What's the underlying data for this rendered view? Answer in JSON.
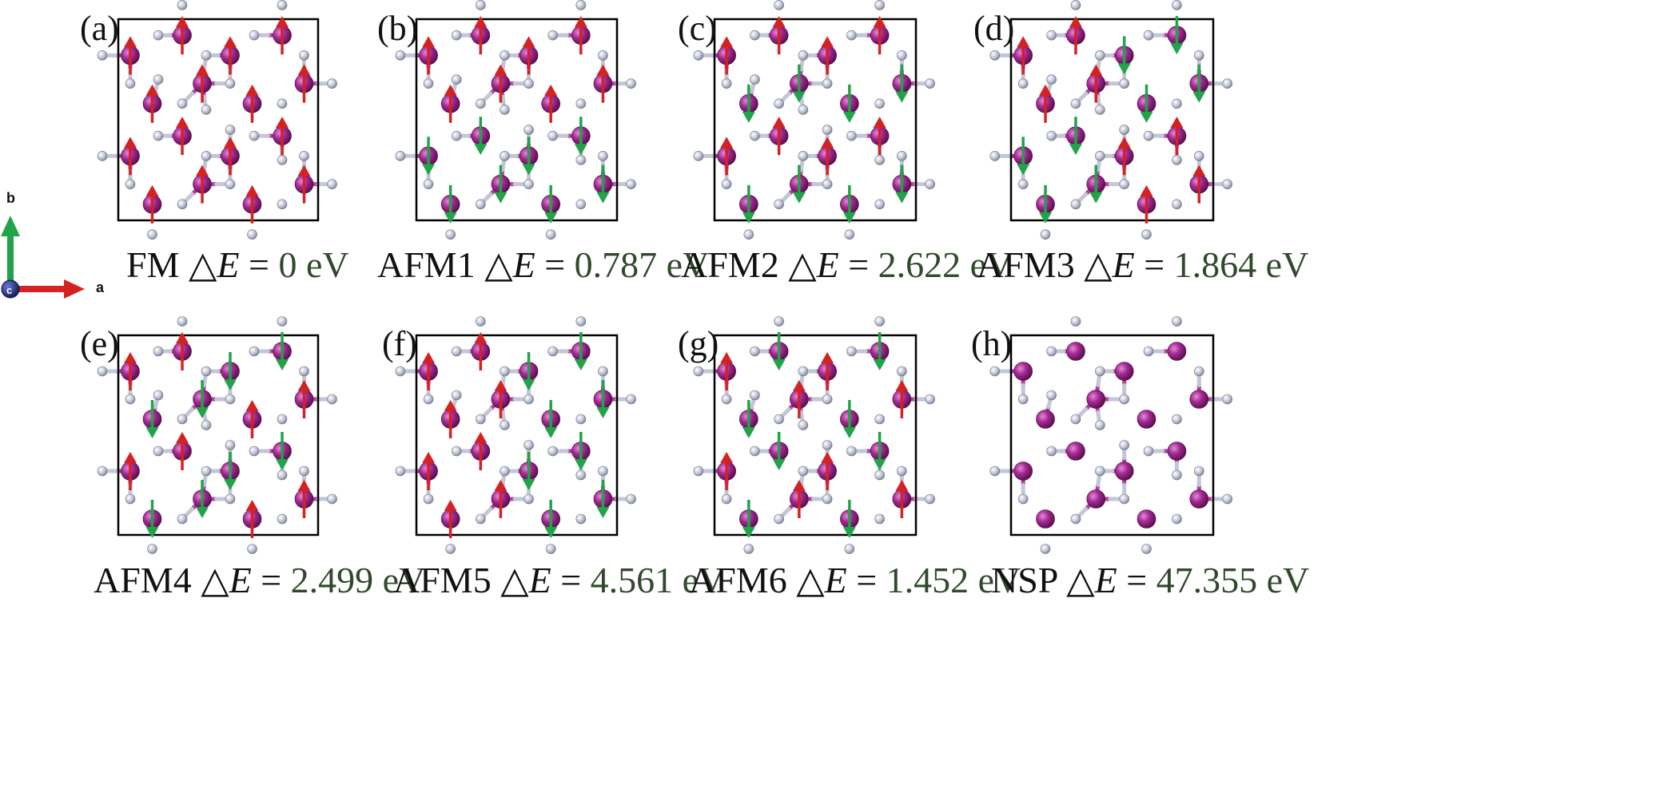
{
  "axes_indicator": {
    "a_label": "a",
    "b_label": "b",
    "c_label": "c"
  },
  "symbols": {
    "delta_e": "ΔE",
    "equals": "="
  },
  "colors": {
    "metal": "#8e1a7c",
    "nonmetal": "#b8bccd",
    "spin_up": "#d42222",
    "spin_down": "#22a34a",
    "value_text": "#2f4a2a",
    "axis_a": "#d42222",
    "axis_b": "#22a34a",
    "axis_c": "#1e2f8a"
  },
  "panels": [
    {
      "label": "(a)",
      "config": "FM",
      "value": "0 eV",
      "spins": [
        "u",
        "u",
        "u",
        "u",
        "u",
        "u",
        "u",
        "u",
        "u",
        "u",
        "u",
        "u",
        "u",
        "u",
        "u",
        "u"
      ]
    },
    {
      "label": "(b)",
      "config": "AFM1",
      "value": "0.787 eV",
      "spins": [
        "u",
        "u",
        "u",
        "u",
        "u",
        "u",
        "u",
        "u",
        "d",
        "d",
        "d",
        "d",
        "d",
        "d",
        "d",
        "d"
      ]
    },
    {
      "label": "(c)",
      "config": "AFM2",
      "value": "2.622 eV",
      "spins": [
        "u",
        "u",
        "u",
        "u",
        "d",
        "d",
        "d",
        "d",
        "u",
        "u",
        "u",
        "u",
        "d",
        "d",
        "d",
        "d"
      ]
    },
    {
      "label": "(d)",
      "config": "AFM3",
      "value": "1.864 eV",
      "spins": [
        "u",
        "d",
        "u",
        "d",
        "u",
        "d",
        "u",
        "d",
        "d",
        "u",
        "d",
        "u",
        "d",
        "u",
        "d",
        "u"
      ]
    },
    {
      "label": "(e)",
      "config": "AFM4",
      "value": "2.499 eV",
      "spins": [
        "u",
        "d",
        "u",
        "d",
        "d",
        "u",
        "d",
        "u",
        "u",
        "d",
        "u",
        "d",
        "d",
        "u",
        "d",
        "u"
      ]
    },
    {
      "label": "(f)",
      "config": "AFM5",
      "value": "4.561 eV",
      "spins": [
        "u",
        "d",
        "u",
        "d",
        "u",
        "d",
        "u",
        "d",
        "u",
        "d",
        "u",
        "d",
        "u",
        "d",
        "u",
        "d"
      ]
    },
    {
      "label": "(g)",
      "config": "AFM6",
      "value": "1.452 eV",
      "spins": [
        "d",
        "d",
        "u",
        "u",
        "u",
        "u",
        "d",
        "d",
        "d",
        "d",
        "u",
        "u",
        "u",
        "u",
        "d",
        "d"
      ]
    },
    {
      "label": "(h)",
      "config": "NSP",
      "value": "47.355 eV",
      "spins": [
        "n",
        "n",
        "n",
        "n",
        "n",
        "n",
        "n",
        "n",
        "n",
        "n",
        "n",
        "n",
        "n",
        "n",
        "n",
        "n"
      ]
    }
  ]
}
